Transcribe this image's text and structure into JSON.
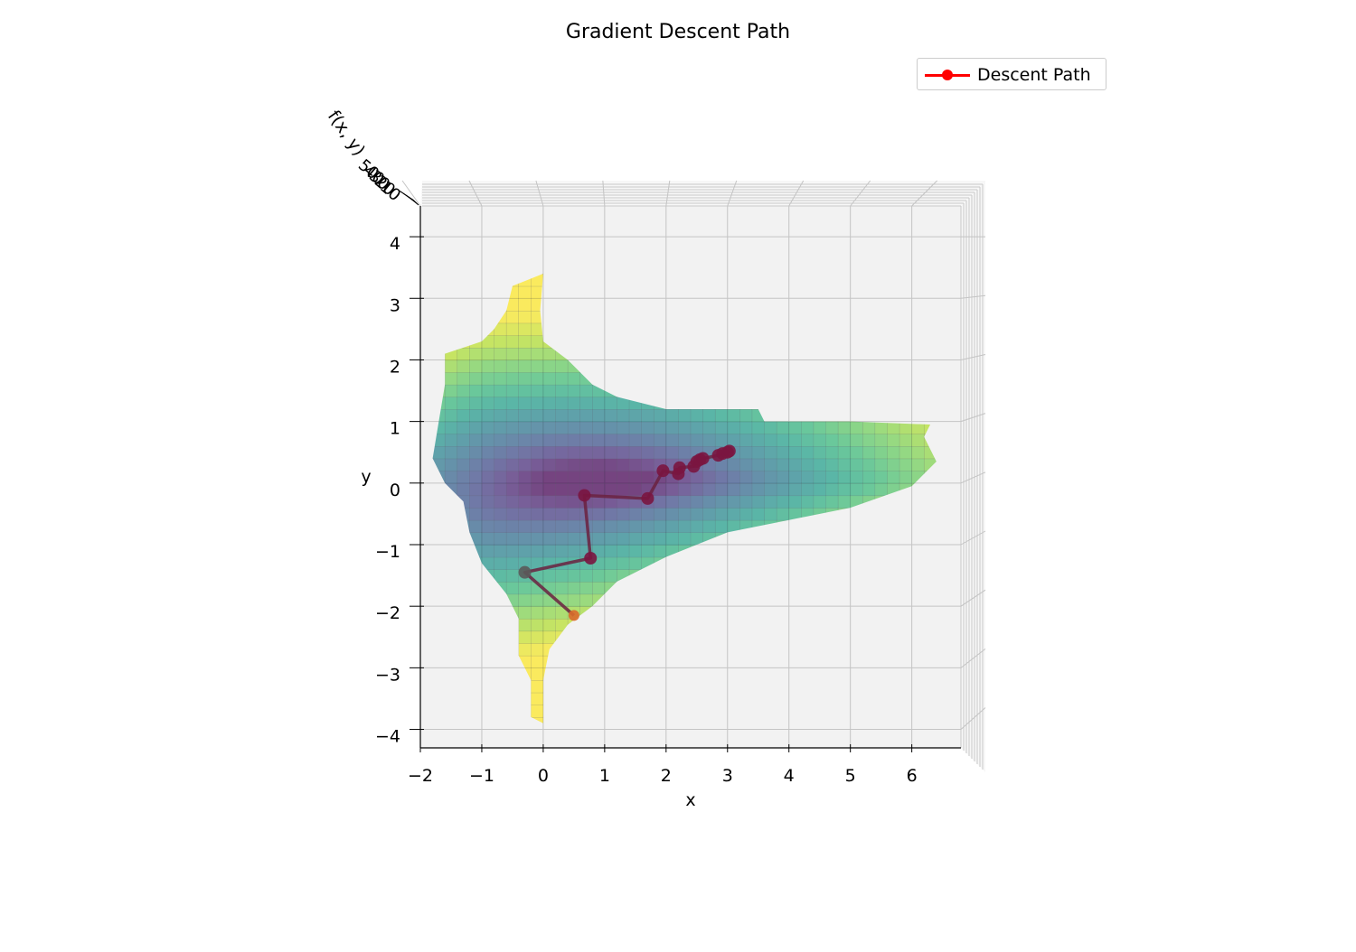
{
  "chart_data": {
    "type": "surface3d",
    "title": "Gradient Descent Path",
    "xlabel": "x",
    "ylabel": "y",
    "zlabel": "f(x, y)",
    "xlim": [
      -2,
      6.8
    ],
    "ylim": [
      -4.3,
      4.5
    ],
    "x_ticks": [
      "−2",
      "−1",
      "0",
      "1",
      "2",
      "3",
      "4",
      "5",
      "6"
    ],
    "y_ticks": [
      "−4",
      "−3",
      "−2",
      "−1",
      "0",
      "1",
      "2",
      "3",
      "4"
    ],
    "z_ticks": [
      "10",
      "20",
      "30",
      "40",
      "50"
    ],
    "grid": true,
    "view": "top-down",
    "colormap": "viridis",
    "legend_position": "top-right",
    "series": [
      {
        "name": "Descent Path",
        "color": "#ff0000",
        "marker": "circle",
        "x": [
          0.5,
          -0.3,
          0.77,
          0.67,
          1.7,
          1.95,
          2.2,
          2.22,
          2.45,
          2.5,
          2.55,
          2.6,
          2.85,
          2.92,
          3.0,
          3.03
        ],
        "y": [
          -2.15,
          -1.45,
          -1.22,
          -0.2,
          -0.25,
          0.2,
          0.15,
          0.25,
          0.27,
          0.35,
          0.38,
          0.4,
          0.45,
          0.48,
          0.5,
          0.52
        ]
      }
    ]
  }
}
